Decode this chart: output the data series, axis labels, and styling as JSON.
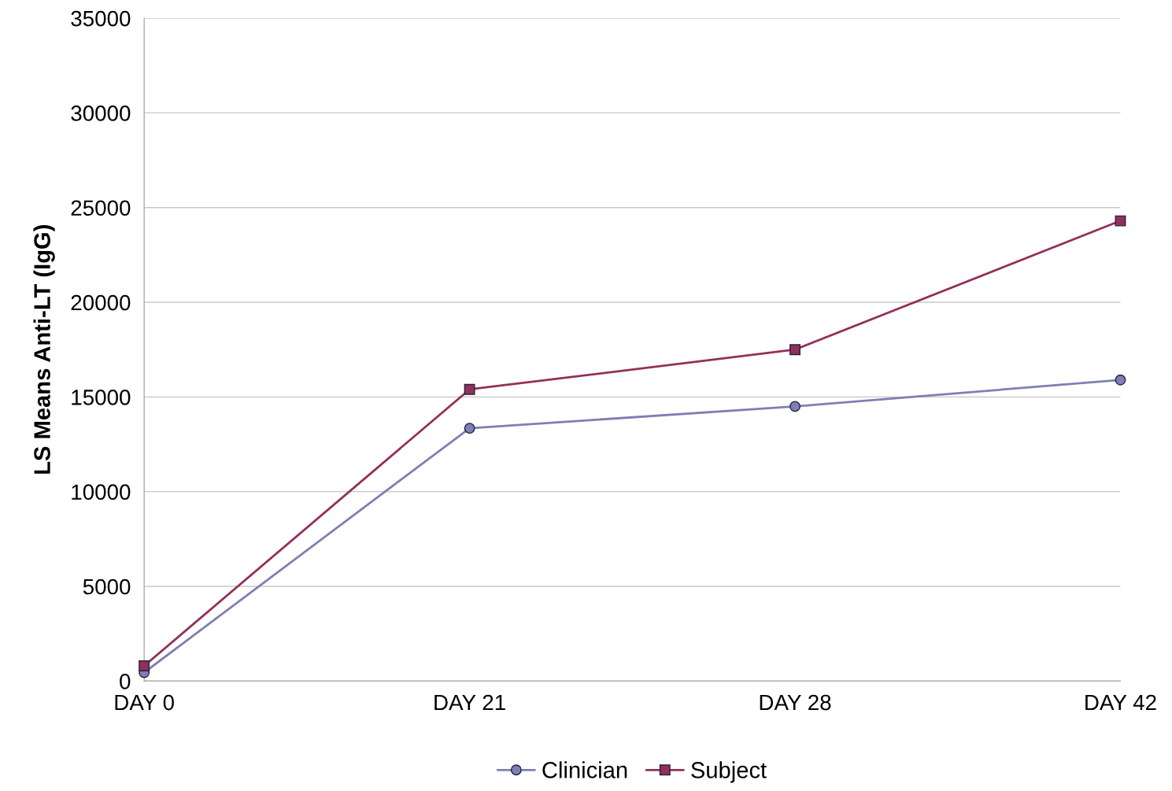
{
  "chart_data": {
    "type": "line",
    "ylabel": "LS Means Anti-LT (IgG)",
    "categories": [
      "DAY 0",
      "DAY 21",
      "DAY 28",
      "DAY 42"
    ],
    "series": [
      {
        "name": "Clinician",
        "color": "#7e7fb3",
        "marker": "circle",
        "values": [
          450,
          13350,
          14500,
          15900
        ]
      },
      {
        "name": "Subject",
        "color": "#93305a",
        "marker": "square",
        "values": [
          800,
          15400,
          17500,
          24300
        ]
      }
    ],
    "ylim": [
      0,
      35000
    ],
    "yticks": [
      0,
      5000,
      10000,
      15000,
      20000,
      25000,
      30000,
      35000
    ],
    "grid": "y",
    "legend": "bottom",
    "line_style": "solid"
  }
}
